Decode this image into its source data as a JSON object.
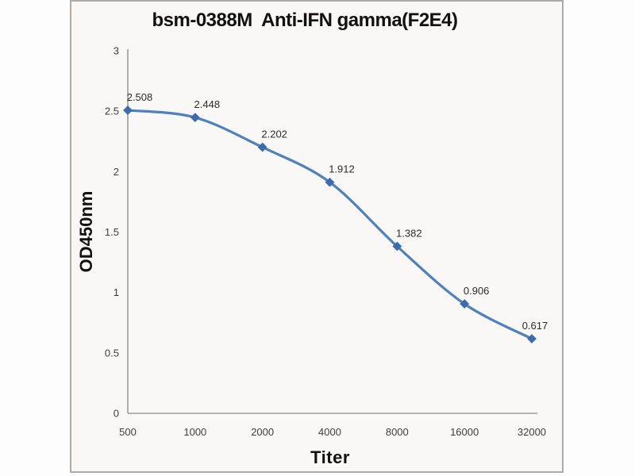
{
  "chart_data": {
    "type": "line",
    "title": "bsm-0388M  Anti-IFN gamma(F2E4)",
    "xlabel": "Titer",
    "ylabel": "OD450nm",
    "categories": [
      "500",
      "1000",
      "2000",
      "4000",
      "8000",
      "16000",
      "32000"
    ],
    "series": [
      {
        "name": "OD450nm",
        "values": [
          2.508,
          2.448,
          2.202,
          1.912,
          1.382,
          0.906,
          0.617
        ],
        "data_labels": [
          "2.508",
          "2.448",
          "2.202",
          "1.912",
          "1.382",
          "0.906",
          "0.617"
        ]
      }
    ],
    "y_ticks": [
      "0",
      "0.5",
      "1",
      "1.5",
      "2",
      "2.5",
      "3"
    ],
    "y_tick_values": [
      0,
      0.5,
      1,
      1.5,
      2,
      2.5,
      3
    ],
    "ylim": [
      0,
      3
    ],
    "grid": false,
    "legend_position": "none",
    "line_style": "smooth",
    "marker_shape": "diamond",
    "colors": {
      "line": "#4f81bd",
      "marker": "#3a6cae",
      "axis": "#9b9b9b",
      "tick_text": "#3d3d3d",
      "label_text": "#2b2b2b",
      "title_text": "#111111",
      "frame_border": "#ababab",
      "plot_background": "#f9f8f6"
    }
  }
}
